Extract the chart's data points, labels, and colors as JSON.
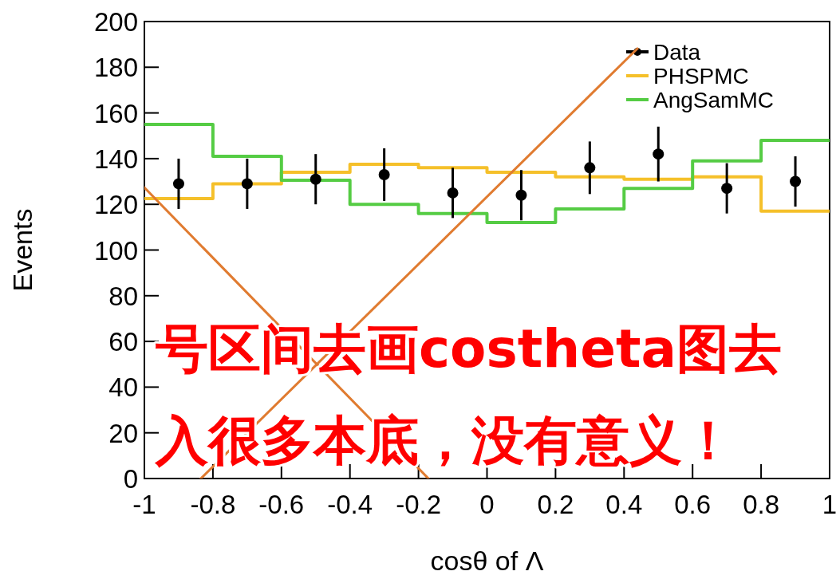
{
  "chart_data": {
    "type": "step",
    "xlabel": "cosθ of Λ",
    "ylabel": "Events",
    "xlim": [
      -1,
      1
    ],
    "ylim": [
      0,
      200
    ],
    "xticks": [
      -1,
      -0.8,
      -0.6,
      -0.4,
      -0.2,
      0,
      0.2,
      0.4,
      0.6,
      0.8,
      1
    ],
    "yticks": [
      0,
      20,
      40,
      60,
      80,
      100,
      120,
      140,
      160,
      180,
      200
    ],
    "legend": "top right",
    "grid": false,
    "series": [
      {
        "name": "Data",
        "type": "scatter",
        "color": "#000000",
        "marker": "circle",
        "x": [
          -0.9,
          -0.7,
          -0.5,
          -0.3,
          -0.1,
          0.1,
          0.3,
          0.5,
          0.7,
          0.9
        ],
        "values": [
          129,
          129,
          131,
          133,
          125,
          124,
          136,
          142,
          127,
          130
        ],
        "errors": [
          11,
          11,
          11,
          11.5,
          11,
          11,
          11.5,
          12,
          11,
          11
        ]
      },
      {
        "name": "PHSPMC",
        "color": "#f5c02a",
        "x": [
          -1,
          -0.8,
          -0.6,
          -0.4,
          -0.2,
          0,
          0.2,
          0.4,
          0.6,
          0.8,
          1
        ],
        "values": [
          122.5,
          129,
          134,
          137.5,
          136,
          134,
          132,
          131,
          132,
          117,
          117
        ]
      },
      {
        "name": "AngSamMC",
        "color": "#55cc44",
        "x": [
          -1,
          -0.8,
          -0.6,
          -0.4,
          -0.2,
          0,
          0.2,
          0.4,
          0.6,
          0.8,
          1
        ],
        "values": [
          155,
          141,
          130.5,
          120,
          116,
          112,
          118,
          127,
          139,
          148,
          148
        ]
      }
    ],
    "annotations": [
      "号区间去画costheta图去",
      "入很多本底，没有意义！"
    ]
  }
}
